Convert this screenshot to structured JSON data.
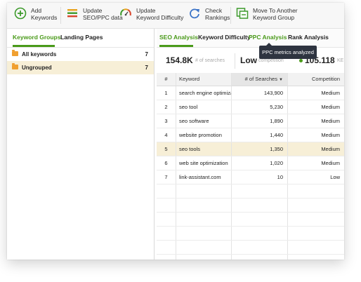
{
  "toolbar": {
    "add": "Add\nKeywords",
    "update_seo": "Update\nSEO/PPC data",
    "update_kd": "Update\nKeyword Difficulty",
    "check": "Check\nRankings",
    "move": "Move To Another\nKeyword Group"
  },
  "left_panel": {
    "tabs": [
      "Keyword Groups",
      "Landing Pages"
    ],
    "groups": [
      {
        "name": "All keywords",
        "count": "7"
      },
      {
        "name": "Ungrouped",
        "count": "7"
      }
    ]
  },
  "right_panel": {
    "tabs": [
      "SEO Analysis",
      "Keyword Difficulty",
      "PPC Analysis",
      "Rank Analysis"
    ],
    "stats": {
      "searches_value": "154.8K",
      "searches_label": "# of searches",
      "competition_value": "Low",
      "competition_label": "competition",
      "kei_value": "105.118",
      "kei_label": "KE"
    },
    "tooltip": "PPC metrics analyzed",
    "table": {
      "headers": {
        "num": "#",
        "keyword": "Keyword",
        "searches": "# of Searches",
        "competition": "Competition"
      },
      "rows": [
        {
          "num": "1",
          "keyword": "search engine optimiza",
          "searches": "143,900",
          "competition": "Medium"
        },
        {
          "num": "2",
          "keyword": "seo tool",
          "searches": "5,230",
          "competition": "Medium"
        },
        {
          "num": "3",
          "keyword": "seo software",
          "searches": "1,890",
          "competition": "Medium"
        },
        {
          "num": "4",
          "keyword": "website promotion",
          "searches": "1,440",
          "competition": "Medium"
        },
        {
          "num": "5",
          "keyword": "seo tools",
          "searches": "1,350",
          "competition": "Medium"
        },
        {
          "num": "6",
          "keyword": "web site optimization",
          "searches": "1,020",
          "competition": "Medium"
        },
        {
          "num": "7",
          "keyword": "link-assistant.com",
          "searches": "10",
          "competition": "Low"
        }
      ]
    }
  },
  "colors": {
    "accent": "#4a9a1a",
    "selection": "#f7efd7",
    "tooltip_bg": "#2e3440"
  }
}
